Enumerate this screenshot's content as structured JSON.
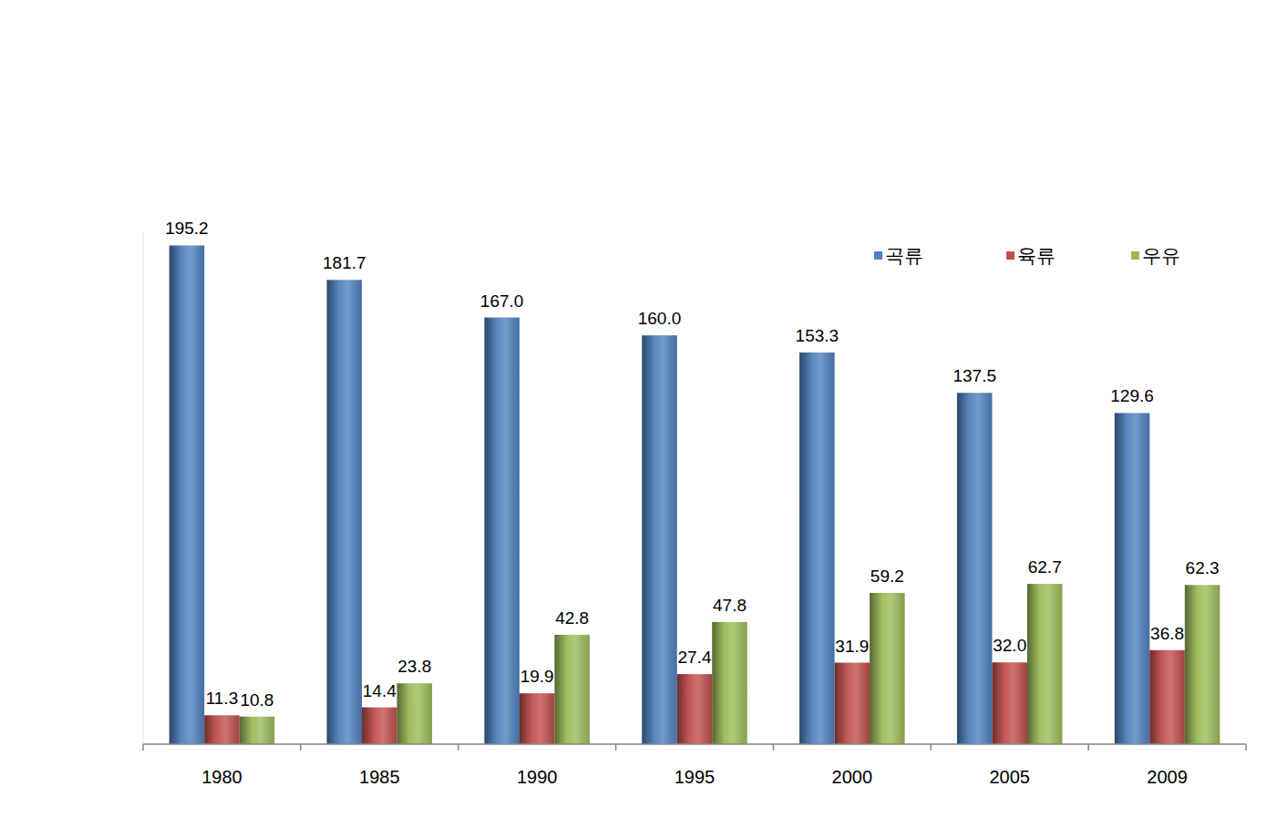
{
  "chart_data": {
    "type": "bar",
    "categories": [
      "1980",
      "1985",
      "1990",
      "1995",
      "2000",
      "2005",
      "2009"
    ],
    "series": [
      {
        "name": "곡류",
        "color": "#4f81bd",
        "values": [
          195.2,
          181.7,
          167.0,
          160.0,
          153.3,
          137.5,
          129.6
        ],
        "value_labels": [
          "195.2",
          "181.7",
          "167.0",
          "160.0",
          "153.3",
          "137.5",
          "129.6"
        ]
      },
      {
        "name": "육류",
        "color": "#c0504d",
        "values": [
          11.3,
          14.4,
          19.9,
          27.4,
          31.9,
          32.0,
          36.8
        ],
        "value_labels": [
          "11.3",
          "14.4",
          "19.9",
          "27.4",
          "31.9",
          "32.0",
          "36.8"
        ]
      },
      {
        "name": "우유",
        "color": "#9bbb59",
        "values": [
          10.8,
          23.8,
          42.8,
          47.8,
          59.2,
          62.7,
          62.3
        ],
        "value_labels": [
          "10.8",
          "23.8",
          "42.8",
          "47.8",
          "59.2",
          "62.7",
          "62.3"
        ]
      }
    ],
    "ylim": [
      0,
      200
    ],
    "data_labels": true,
    "legend": "upper right",
    "tick_labels": "x"
  }
}
